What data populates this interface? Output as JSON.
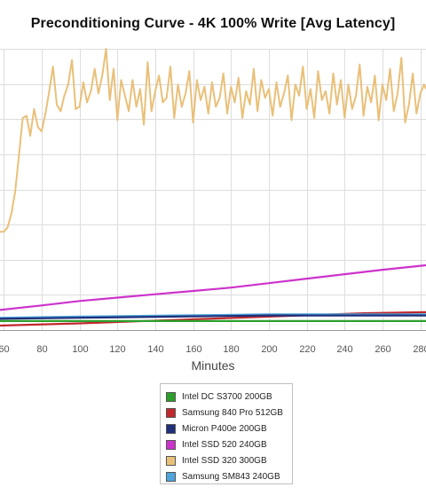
{
  "chart_data": {
    "type": "line",
    "title": "Preconditioning Curve - 4K 100% Write [Avg Latency]",
    "xlabel": "Minutes",
    "ylabel": "",
    "x_ticks": [
      "60",
      "80",
      "100",
      "120",
      "140",
      "160",
      "180",
      "200",
      "220",
      "240",
      "260",
      "280"
    ],
    "x_visible_range": [
      58,
      283
    ],
    "grid": true,
    "legend_position": "bottom-center",
    "series": [
      {
        "name": "Intel DC S3700 200GB",
        "color": "#2ca02c",
        "x": [
          58,
          100,
          150,
          200,
          250,
          283
        ],
        "y": [
          0.04,
          0.04,
          0.04,
          0.04,
          0.04,
          0.04
        ]
      },
      {
        "name": "Samsung 840 Pro 512GB",
        "color": "#c0282d",
        "x": [
          58,
          100,
          150,
          200,
          250,
          283
        ],
        "y": [
          0.02,
          0.03,
          0.045,
          0.06,
          0.075,
          0.08
        ]
      },
      {
        "name": "Micron P400e 200GB",
        "color": "#1f2f7a",
        "x": [
          58,
          100,
          150,
          200,
          250,
          283
        ],
        "y": [
          0.05,
          0.055,
          0.06,
          0.065,
          0.065,
          0.065
        ]
      },
      {
        "name": "Intel SSD 520 240GB",
        "color": "#cc33cc",
        "x": [
          58,
          80,
          100,
          120,
          140,
          160,
          180,
          200,
          220,
          240,
          260,
          283
        ],
        "y": [
          0.09,
          0.11,
          0.13,
          0.145,
          0.16,
          0.175,
          0.19,
          0.21,
          0.23,
          0.25,
          0.27,
          0.29
        ]
      },
      {
        "name": "Intel SSD 320 300GB",
        "color": "#e9c079",
        "x": [
          58,
          60,
          62,
          64,
          66,
          68,
          70,
          72,
          74,
          76,
          78,
          80,
          82,
          84,
          86,
          88,
          90,
          92,
          94,
          96,
          98,
          100,
          102,
          104,
          106,
          108,
          110,
          112,
          114,
          116,
          118,
          120,
          122,
          124,
          126,
          128,
          130,
          132,
          134,
          136,
          138,
          140,
          142,
          144,
          146,
          148,
          150,
          152,
          154,
          156,
          158,
          160,
          162,
          164,
          166,
          168,
          170,
          172,
          174,
          176,
          178,
          180,
          182,
          184,
          186,
          188,
          190,
          192,
          194,
          196,
          198,
          200,
          202,
          204,
          206,
          208,
          210,
          212,
          214,
          216,
          218,
          220,
          222,
          224,
          226,
          228,
          230,
          232,
          234,
          236,
          238,
          240,
          242,
          244,
          246,
          248,
          250,
          252,
          254,
          256,
          258,
          260,
          262,
          264,
          266,
          268,
          270,
          272,
          274,
          276,
          278,
          280,
          282,
          283
        ],
        "y": [
          0.44,
          0.44,
          0.46,
          0.52,
          0.62,
          0.78,
          0.95,
          0.96,
          0.87,
          0.99,
          0.91,
          0.89,
          0.97,
          1.07,
          1.18,
          1.01,
          0.98,
          1.05,
          1.1,
          1.21,
          0.99,
          1.0,
          1.11,
          1.02,
          1.07,
          1.17,
          1.06,
          1.14,
          1.26,
          1.03,
          1.17,
          0.94,
          1.12,
          1.05,
          0.98,
          1.12,
          1.0,
          1.08,
          0.92,
          1.2,
          0.98,
          1.07,
          1.14,
          1.02,
          1.04,
          1.18,
          0.95,
          1.1,
          1.0,
          1.06,
          1.16,
          0.93,
          1.12,
          1.03,
          1.09,
          0.97,
          1.11,
          1.0,
          1.04,
          1.15,
          0.97,
          1.09,
          1.02,
          1.13,
          0.95,
          1.07,
          1.01,
          1.17,
          0.98,
          1.12,
          1.04,
          1.08,
          0.96,
          1.11,
          1.0,
          1.06,
          1.14,
          0.94,
          1.1,
          1.05,
          1.18,
          0.99,
          1.08,
          0.95,
          1.16,
          1.03,
          1.07,
          0.97,
          1.15,
          1.01,
          1.12,
          0.95,
          1.1,
          0.99,
          1.05,
          1.19,
          0.96,
          1.09,
          1.02,
          1.14,
          0.94,
          1.1,
          1.03,
          1.17,
          0.98,
          1.06,
          1.22,
          0.93,
          1.01,
          1.15,
          0.97,
          1.06,
          1.1,
          1.08
        ]
      },
      {
        "name": "Samsung SM843 240GB",
        "color": "#4fa6dc",
        "x": [
          58,
          100,
          150,
          200,
          250,
          283
        ],
        "y": [
          0.055,
          0.06,
          0.065,
          0.07,
          0.07,
          0.07
        ]
      }
    ]
  }
}
